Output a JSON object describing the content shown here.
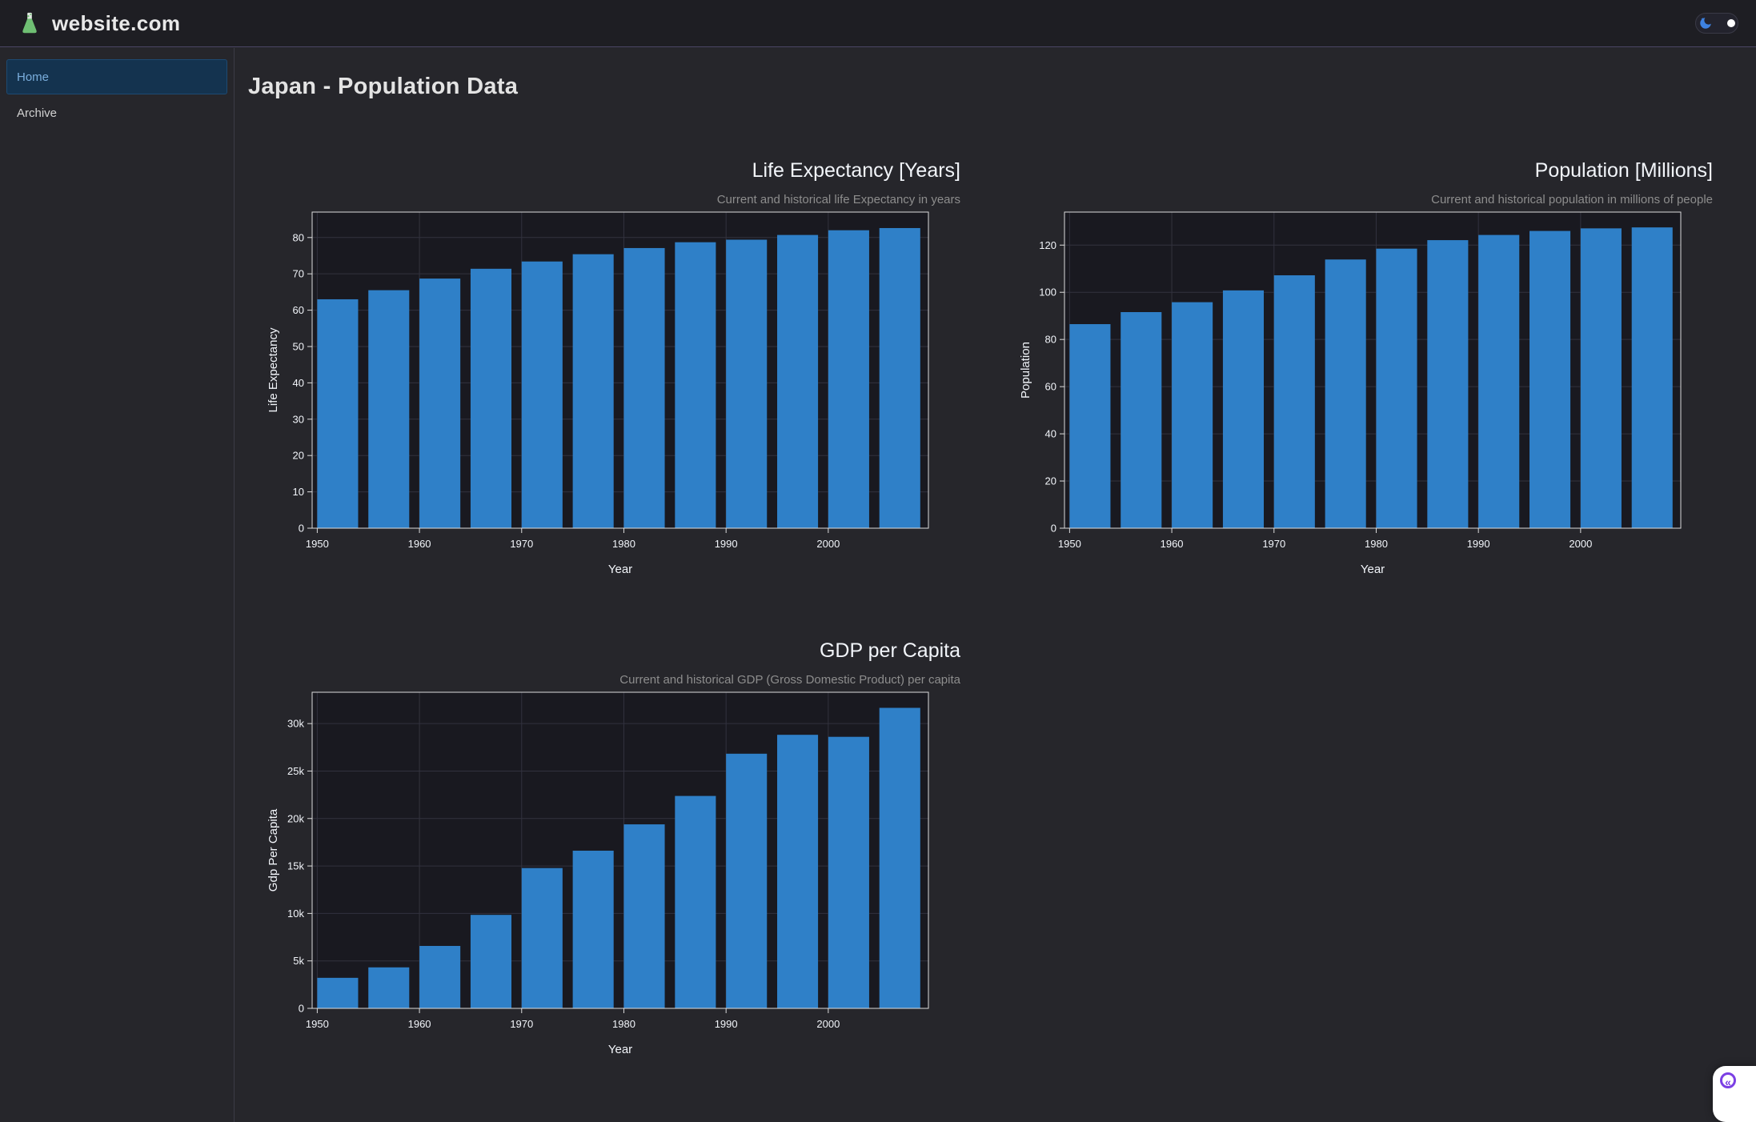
{
  "header": {
    "brand": "website.com",
    "logo": "flask-icon",
    "theme_toggle": {
      "state": "dark",
      "moon_icon": "moon-stars-icon"
    }
  },
  "sidebar": {
    "items": [
      {
        "label": "Home",
        "active": true
      },
      {
        "label": "Archive",
        "active": false
      }
    ]
  },
  "main": {
    "title": "Japan - Population Data"
  },
  "debug": {
    "chevrons": "«"
  },
  "colors": {
    "page_bg": "#26262b",
    "navbar_bg": "#1e1e23",
    "plot_bg": "#191920",
    "grid": "#32323e",
    "axis_line": "#dcdcdc",
    "tick_text": "#f2f5fa",
    "title_text": "#f2f5fa",
    "subtitle_text": "#8d8d8d",
    "bar_blue": "#2f80c8",
    "accent_purple": "#7b3fe4",
    "flask_green": "#6fbf73",
    "moon_blue": "#3e82e0",
    "active_nav_bg": "#14334f",
    "active_nav_text": "#7aaedd"
  },
  "chart_data": [
    {
      "name": "life-expectancy-chart",
      "type": "bar",
      "title": "Life Expectancy [Years]",
      "subtitle": "Current and historical life Expectancy in years",
      "xlabel": "Year",
      "ylabel": "Life Expectancy",
      "x": [
        1952,
        1957,
        1962,
        1967,
        1972,
        1977,
        1982,
        1987,
        1992,
        1997,
        2002,
        2007
      ],
      "values": [
        63.0,
        65.5,
        68.7,
        71.4,
        73.4,
        75.4,
        77.1,
        78.7,
        79.4,
        80.7,
        82.0,
        82.6
      ],
      "xlim": [
        1949.5,
        2009.8
      ],
      "ylim": [
        0,
        87
      ],
      "xticks": [
        1950,
        1960,
        1970,
        1980,
        1990,
        2000
      ],
      "yticks": [
        0,
        10,
        20,
        30,
        40,
        50,
        60,
        70,
        80
      ],
      "ytick_labels": [
        "0",
        "10",
        "20",
        "30",
        "40",
        "50",
        "60",
        "70",
        "80"
      ],
      "bar_width_x": 4,
      "bar_color": "#2f80c8",
      "grid": true,
      "legend": "none"
    },
    {
      "name": "population-chart",
      "type": "bar",
      "title": "Population [Millions]",
      "subtitle": "Current and historical population in millions of people",
      "xlabel": "Year",
      "ylabel": "Population",
      "x": [
        1952,
        1957,
        1962,
        1967,
        1972,
        1977,
        1982,
        1987,
        1992,
        1997,
        2002,
        2007
      ],
      "values": [
        86.5,
        91.6,
        95.8,
        100.8,
        107.2,
        113.9,
        118.5,
        122.1,
        124.3,
        126.0,
        127.1,
        127.5
      ],
      "xlim": [
        1949.5,
        2009.8
      ],
      "ylim": [
        0,
        134
      ],
      "xticks": [
        1950,
        1960,
        1970,
        1980,
        1990,
        2000
      ],
      "yticks": [
        0,
        20,
        40,
        60,
        80,
        100,
        120
      ],
      "ytick_labels": [
        "0",
        "20",
        "40",
        "60",
        "80",
        "100",
        "120"
      ],
      "bar_width_x": 4,
      "bar_color": "#2f80c8",
      "grid": true,
      "legend": "none"
    },
    {
      "name": "gdp-per-capita-chart",
      "type": "bar",
      "title": "GDP per Capita",
      "subtitle": "Current and historical GDP (Gross Domestic Product) per capita",
      "xlabel": "Year",
      "ylabel": "Gdp Per Capita",
      "x": [
        1952,
        1957,
        1962,
        1967,
        1972,
        1977,
        1982,
        1987,
        1992,
        1997,
        2002,
        2007
      ],
      "values": [
        3217,
        4318,
        6577,
        9848,
        14779,
        16610,
        19384,
        22376,
        26825,
        28817,
        28605,
        31656
      ],
      "xlim": [
        1949.5,
        2009.8
      ],
      "ylim": [
        0,
        33300
      ],
      "xticks": [
        1950,
        1960,
        1970,
        1980,
        1990,
        2000
      ],
      "yticks": [
        0,
        5000,
        10000,
        15000,
        20000,
        25000,
        30000
      ],
      "ytick_labels": [
        "0",
        "5k",
        "10k",
        "15k",
        "20k",
        "25k",
        "30k"
      ],
      "bar_width_x": 4,
      "bar_color": "#2f80c8",
      "grid": true,
      "legend": "none"
    }
  ]
}
